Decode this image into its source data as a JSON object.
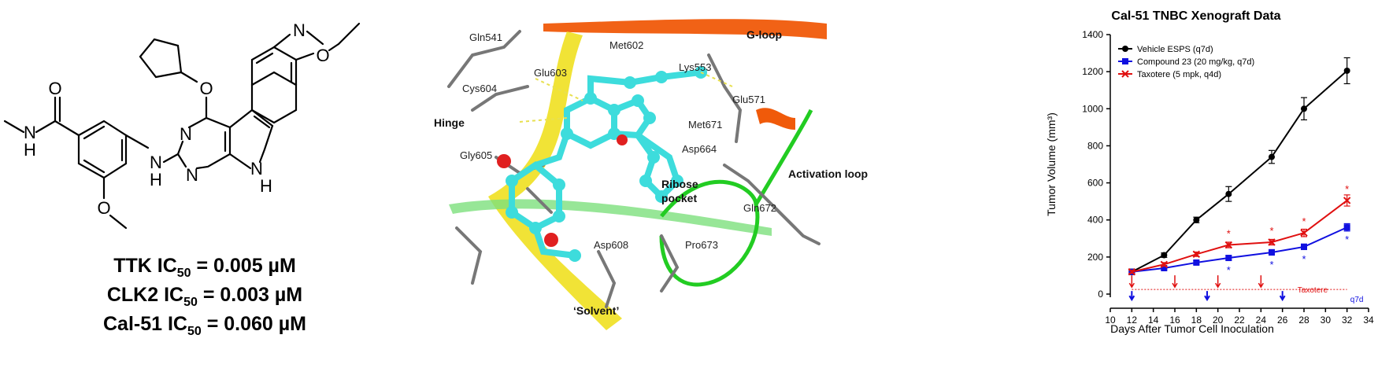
{
  "molecule": {
    "atom_labels": {
      "O_carbonyl": "O",
      "N_amide": "N",
      "H_amide": "H",
      "O_methoxy": "O",
      "N_amine": "N",
      "H_amine": "H",
      "O_ether": "O",
      "N_pyr1": "N",
      "N_pyr2": "N",
      "N_pyrrole": "N",
      "H_pyrrole": "H",
      "N_oxazole": "N",
      "O_oxazole": "O"
    },
    "ic50": [
      {
        "target": "TTK IC",
        "sub": "50",
        "value": " = 0.005 µM"
      },
      {
        "target": "CLK2 IC",
        "sub": "50",
        "value": " = 0.003 µM"
      },
      {
        "target": "Cal-51 IC",
        "sub": "50",
        "value": " = 0.060 µM"
      }
    ]
  },
  "structure": {
    "labels": {
      "gln541": "Gln541",
      "met602": "Met602",
      "gloop": "G-loop",
      "glu603": "Glu603",
      "lys553": "Lys553",
      "cys604": "Cys604",
      "glu571": "Glu571",
      "hinge": "Hinge",
      "met671": "Met671",
      "gly605": "Gly605",
      "asp664": "Asp664",
      "activation": "Activation loop",
      "ribose": "Ribose",
      "pocket": "pocket",
      "gln672": "Gln672",
      "asp608": "Asp608",
      "pro673": "Pro673",
      "solvent": "‘Solvent’"
    },
    "colors": {
      "ligand": "#3ddcdc",
      "hinge_ribbon": "#f0e020",
      "gloop_ribbon": "#f05a0a",
      "activation_ribbon": "#22cc22"
    }
  },
  "chart_data": {
    "type": "line",
    "title": "Cal-51 TNBC Xenograft Data",
    "xlabel": "Days After Tumor Cell Inoculation",
    "ylabel": "Tumor Volume (mm³)",
    "xlim": [
      10,
      34
    ],
    "ylim": [
      0,
      1400
    ],
    "xticks": [
      10,
      12,
      14,
      16,
      18,
      20,
      22,
      24,
      26,
      28,
      30,
      32,
      34
    ],
    "yticks": [
      0,
      200,
      400,
      600,
      800,
      1000,
      1200,
      1400
    ],
    "legend_position": "top-left",
    "series": [
      {
        "name": "Vehicle ESPS (q7d)",
        "color": "#000000",
        "marker": "circle",
        "x": [
          12,
          15,
          18,
          21,
          25,
          28,
          32
        ],
        "y": [
          120,
          210,
          400,
          540,
          740,
          1000,
          1205
        ],
        "err": [
          15,
          12,
          15,
          40,
          35,
          60,
          70
        ]
      },
      {
        "name": "Compound 23 (20 mg/kg, q7d)",
        "color": "#1010e0",
        "marker": "square",
        "x": [
          12,
          15,
          18,
          21,
          25,
          28,
          32
        ],
        "y": [
          120,
          140,
          170,
          195,
          225,
          255,
          360
        ],
        "err": [
          8,
          8,
          10,
          12,
          15,
          15,
          20
        ]
      },
      {
        "name": "Taxotere (5 mpk, q4d)",
        "color": "#e01010",
        "marker": "cross",
        "x": [
          12,
          15,
          18,
          21,
          25,
          28,
          32
        ],
        "y": [
          120,
          160,
          215,
          265,
          280,
          330,
          505
        ],
        "err": [
          8,
          10,
          12,
          15,
          15,
          20,
          30
        ]
      }
    ],
    "significance_marks": [
      {
        "x": 21,
        "y": 265,
        "color": "#e01010",
        "text": "*"
      },
      {
        "x": 25,
        "y": 280,
        "color": "#e01010",
        "text": "*"
      },
      {
        "x": 28,
        "y": 330,
        "color": "#e01010",
        "text": "*"
      },
      {
        "x": 32,
        "y": 505,
        "color": "#e01010",
        "text": "*"
      },
      {
        "x": 21,
        "y": 195,
        "color": "#1010e0",
        "text": "*"
      },
      {
        "x": 25,
        "y": 225,
        "color": "#1010e0",
        "text": "*"
      },
      {
        "x": 28,
        "y": 255,
        "color": "#1010e0",
        "text": "*"
      },
      {
        "x": 32,
        "y": 360,
        "color": "#1010e0",
        "text": "*"
      }
    ],
    "dosing": {
      "taxotere": {
        "label": "Taxotere",
        "color": "#e01010",
        "days": [
          12,
          16,
          20,
          24
        ],
        "level": 25
      },
      "compound": {
        "label": "q7d",
        "color": "#1010e0",
        "days": [
          12,
          19,
          26
        ],
        "level": -5
      }
    }
  }
}
